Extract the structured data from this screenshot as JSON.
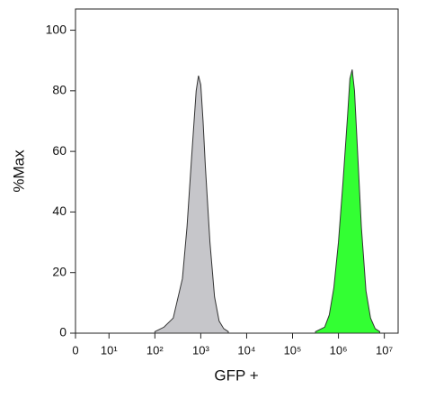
{
  "chart_data": {
    "type": "area",
    "xlabel": "GFP +",
    "ylabel": "%Max",
    "xscale": "symlog",
    "linthresh": 10,
    "xlim": [
      0,
      20000000
    ],
    "ylim": [
      0,
      107
    ],
    "xticks": [
      0,
      {
        "value": 10,
        "label": "10¹"
      },
      {
        "value": 100,
        "label": "10²"
      },
      {
        "value": 1000,
        "label": "10³"
      },
      {
        "value": 10000,
        "label": "10⁴"
      },
      {
        "value": 100000,
        "label": "10⁵"
      },
      {
        "value": 1000000,
        "label": "10⁶"
      },
      {
        "value": 10000000,
        "label": "10⁷"
      }
    ],
    "yticks": [
      0,
      20,
      40,
      60,
      80,
      100
    ],
    "series": [
      {
        "color": "#c6c6ca",
        "x": [
          100,
          158,
          251,
          398,
          501,
          631,
          794,
          891,
          1000,
          1122,
          1259,
          1585,
          1995,
          2512,
          3162,
          3981
        ],
        "values": [
          0.5,
          2,
          5,
          18,
          35,
          58,
          80,
          85,
          82,
          70,
          55,
          30,
          12,
          4,
          1.5,
          0.5
        ]
      },
      {
        "color": "#33ff33",
        "x": [
          316228,
          501187,
          630957,
          794328,
          1000000,
          1258925,
          1584893,
          1778279,
          1995262,
          2238721,
          2511886,
          3162278,
          3981072,
          5011872,
          6309573,
          7943282
        ],
        "values": [
          0.5,
          2,
          6,
          15,
          30,
          50,
          72,
          84,
          87,
          80,
          65,
          35,
          14,
          5,
          1.5,
          0.5
        ]
      }
    ]
  }
}
